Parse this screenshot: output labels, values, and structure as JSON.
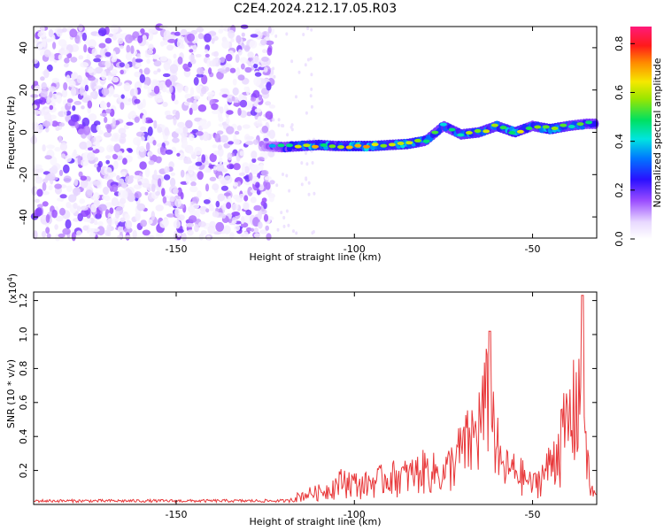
{
  "title": "C2E4.2024.212.17.05.R03",
  "chart_data": [
    {
      "type": "heatmap",
      "xlabel": "Height of straight line (km)",
      "ylabel": "Frequency (Hz)",
      "xlim": [
        -190,
        -32
      ],
      "ylim": [
        -50,
        50
      ],
      "xticks": [
        -150,
        -100,
        -50
      ],
      "xtick_labels": [
        "-150",
        "-100",
        "-50"
      ],
      "yticks": [
        -40,
        -20,
        0,
        20,
        40
      ],
      "ytick_labels": [
        "-40",
        "-20",
        "0",
        "20",
        "40"
      ],
      "colorbar": {
        "label": "Normalized spectral amplitude",
        "range": [
          0,
          0.87
        ],
        "ticks": [
          0.0,
          0.2,
          0.4,
          0.6,
          0.8
        ],
        "tick_labels": [
          "0.0",
          "0.2",
          "0.4",
          "0.6",
          "0.8"
        ]
      },
      "noise_region": {
        "x_range": [
          -190,
          -123
        ],
        "y_range": [
          -50,
          50
        ],
        "amplitude": [
          0.02,
          0.2
        ]
      },
      "signal_trace": [
        {
          "x": -126,
          "y": -6.5,
          "amp": 0.25
        },
        {
          "x": -120,
          "y": -7,
          "amp": 0.45
        },
        {
          "x": -115,
          "y": -6.5,
          "amp": 0.6
        },
        {
          "x": -110,
          "y": -6,
          "amp": 0.65
        },
        {
          "x": -105,
          "y": -6.5,
          "amp": 0.55
        },
        {
          "x": -100,
          "y": -6.5,
          "amp": 0.7
        },
        {
          "x": -95,
          "y": -6.5,
          "amp": 0.65
        },
        {
          "x": -90,
          "y": -6,
          "amp": 0.6
        },
        {
          "x": -85,
          "y": -5.5,
          "amp": 0.65
        },
        {
          "x": -80,
          "y": -4,
          "amp": 0.55
        },
        {
          "x": -75,
          "y": 3,
          "amp": 0.5
        },
        {
          "x": -70,
          "y": -1,
          "amp": 0.55
        },
        {
          "x": -65,
          "y": 0,
          "amp": 0.6
        },
        {
          "x": -60,
          "y": 3,
          "amp": 0.55
        },
        {
          "x": -55,
          "y": 0,
          "amp": 0.65
        },
        {
          "x": -50,
          "y": 3,
          "amp": 0.5
        },
        {
          "x": -45,
          "y": 1.5,
          "amp": 0.7
        },
        {
          "x": -40,
          "y": 3,
          "amp": 0.55
        },
        {
          "x": -35,
          "y": 4,
          "amp": 0.5
        }
      ]
    },
    {
      "type": "line",
      "xlabel": "Height of straight line (km)",
      "ylabel": "SNR (10 * v/v)",
      "ylabel_multiplier": "(x10",
      "ylabel_multiplier_exp": "4",
      "ylabel_multiplier_close": ")",
      "xlim": [
        -190,
        -32
      ],
      "ylim": [
        0,
        1.25
      ],
      "xticks": [
        -150,
        -100,
        -50
      ],
      "xtick_labels": [
        "-150",
        "-100",
        "-50"
      ],
      "yticks": [
        0.2,
        0.4,
        0.6,
        0.8,
        1.0,
        1.2
      ],
      "ytick_labels": [
        "0.2",
        "0.4",
        "0.6",
        "0.8",
        "1.0",
        "1.2"
      ],
      "series": [
        {
          "color": "#e8383a",
          "envelope": [
            {
              "x": -190,
              "y": 0.03
            },
            {
              "x": -130,
              "y": 0.03
            },
            {
              "x": -118,
              "y": 0.05
            },
            {
              "x": -113,
              "y": 0.1
            },
            {
              "x": -108,
              "y": 0.13
            },
            {
              "x": -103,
              "y": 0.23
            },
            {
              "x": -98,
              "y": 0.18
            },
            {
              "x": -90,
              "y": 0.26
            },
            {
              "x": -85,
              "y": 0.27
            },
            {
              "x": -80,
              "y": 0.33
            },
            {
              "x": -75,
              "y": 0.28
            },
            {
              "x": -70,
              "y": 0.5
            },
            {
              "x": -66,
              "y": 0.65
            },
            {
              "x": -62,
              "y": 1.02
            },
            {
              "x": -59,
              "y": 0.35
            },
            {
              "x": -54,
              "y": 0.3
            },
            {
              "x": -50,
              "y": 0.18
            },
            {
              "x": -46,
              "y": 0.32
            },
            {
              "x": -42,
              "y": 0.6
            },
            {
              "x": -38,
              "y": 0.9
            },
            {
              "x": -36,
              "y": 1.23
            },
            {
              "x": -34,
              "y": 0.15
            },
            {
              "x": -32,
              "y": 0.08
            }
          ]
        }
      ]
    }
  ]
}
